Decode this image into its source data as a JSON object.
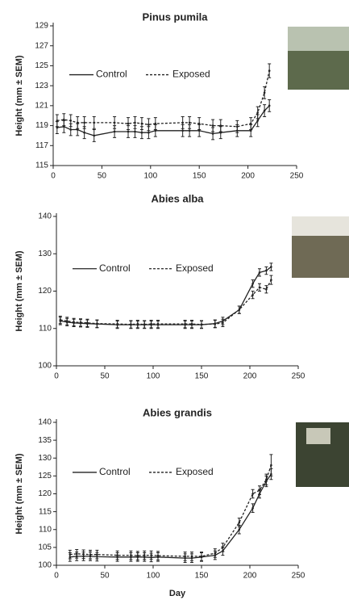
{
  "chart_data": [
    {
      "type": "line",
      "title": "Pinus pumila",
      "y_label": "Height (mm ± SEM)",
      "x": [
        4,
        11,
        18,
        25,
        32,
        42,
        63,
        77,
        84,
        91,
        98,
        105,
        133,
        140,
        150,
        164,
        172,
        189,
        203,
        210,
        217,
        222
      ],
      "series": [
        {
          "name": "Control",
          "color": "#222222",
          "style": "solid",
          "values": [
            118.8,
            118.9,
            118.6,
            118.6,
            118.3,
            118.0,
            118.4,
            118.4,
            118.4,
            118.3,
            118.3,
            118.5,
            118.5,
            118.5,
            118.5,
            118.2,
            118.3,
            118.5,
            118.5,
            119.5,
            120.5,
            121.0
          ],
          "errors": [
            0.6,
            0.6,
            0.6,
            0.6,
            0.6,
            0.6,
            0.6,
            0.6,
            0.6,
            0.6,
            0.6,
            0.6,
            0.6,
            0.6,
            0.6,
            0.6,
            0.6,
            0.6,
            0.6,
            0.6,
            0.6,
            0.6
          ]
        },
        {
          "name": "Exposed",
          "color": "#222222",
          "style": "dashed",
          "values": [
            119.5,
            119.6,
            119.5,
            119.3,
            119.3,
            119.3,
            119.3,
            119.2,
            119.3,
            119.2,
            119.1,
            119.2,
            119.3,
            119.3,
            119.2,
            119.0,
            119.0,
            118.9,
            119.2,
            120.3,
            122.3,
            124.5
          ],
          "errors": [
            0.6,
            0.6,
            0.6,
            0.6,
            0.6,
            0.6,
            0.6,
            0.6,
            0.6,
            0.6,
            0.6,
            0.6,
            0.6,
            0.6,
            0.6,
            0.6,
            0.6,
            0.6,
            0.6,
            0.6,
            0.6,
            0.7
          ]
        }
      ],
      "xlim": [
        0,
        250
      ],
      "xticks": [
        0,
        50,
        100,
        150,
        200,
        250
      ],
      "ylim": [
        115,
        129
      ],
      "yticks": [
        115,
        117,
        119,
        121,
        123,
        125,
        127,
        129
      ],
      "legend": "upper left"
    },
    {
      "type": "line",
      "title": "Abies alba",
      "y_label": "Height (mm ± SEM)",
      "x": [
        4,
        11,
        18,
        25,
        32,
        42,
        63,
        77,
        84,
        91,
        98,
        105,
        133,
        140,
        150,
        164,
        172,
        189,
        203,
        210,
        217,
        222
      ],
      "series": [
        {
          "name": "Control",
          "color": "#222222",
          "style": "solid",
          "values": [
            112.0,
            111.7,
            111.5,
            111.4,
            111.3,
            111.2,
            111.0,
            111.0,
            111.0,
            111.0,
            111.0,
            111.0,
            111.0,
            111.0,
            111.0,
            111.3,
            112.0,
            115.0,
            122.0,
            125.0,
            125.5,
            126.5
          ],
          "errors": [
            1.0,
            1.0,
            1.0,
            1.0,
            1.0,
            1.0,
            1.0,
            1.0,
            1.0,
            1.0,
            1.0,
            1.0,
            1.0,
            1.0,
            1.0,
            1.0,
            1.0,
            1.0,
            1.0,
            1.0,
            1.0,
            1.0
          ]
        },
        {
          "name": "Exposed",
          "color": "#222222",
          "style": "dashed",
          "values": [
            112.3,
            112.0,
            111.7,
            111.6,
            111.5,
            111.3,
            111.2,
            111.1,
            111.2,
            111.1,
            111.2,
            111.2,
            111.2,
            111.2,
            111.1,
            111.2,
            111.5,
            115.0,
            119.0,
            121.0,
            120.5,
            123.0
          ],
          "errors": [
            1.0,
            1.0,
            1.0,
            1.0,
            1.0,
            1.0,
            1.0,
            1.0,
            1.0,
            1.0,
            1.0,
            1.0,
            1.0,
            1.0,
            1.0,
            1.0,
            1.0,
            1.0,
            1.0,
            1.0,
            1.0,
            1.2
          ]
        }
      ],
      "xlim": [
        0,
        250
      ],
      "xticks": [
        0,
        50,
        100,
        150,
        200,
        250
      ],
      "ylim": [
        100,
        140
      ],
      "yticks": [
        100,
        110,
        120,
        130,
        140
      ],
      "legend": "upper left"
    },
    {
      "type": "line",
      "title": "Abies grandis",
      "y_label": "Height (mm ± SEM)",
      "x_label": "Day",
      "x": [
        14,
        21,
        28,
        35,
        42,
        63,
        77,
        84,
        91,
        98,
        105,
        133,
        140,
        150,
        164,
        172,
        189,
        203,
        210,
        217,
        222
      ],
      "series": [
        {
          "name": "Control",
          "color": "#222222",
          "style": "solid",
          "values": [
            102.3,
            102.5,
            102.5,
            102.5,
            102.4,
            102.3,
            102.3,
            102.3,
            102.3,
            102.2,
            102.3,
            102.0,
            102.0,
            102.3,
            102.8,
            104.0,
            110.0,
            116.0,
            120.0,
            123.5,
            125.5
          ],
          "errors": [
            1.2,
            1.2,
            1.2,
            1.2,
            1.2,
            1.2,
            1.2,
            1.2,
            1.2,
            1.2,
            1.2,
            1.2,
            1.2,
            1.2,
            1.2,
            1.2,
            1.2,
            1.2,
            1.2,
            1.5,
            1.5
          ]
        },
        {
          "name": "Exposed",
          "color": "#222222",
          "style": "dashed",
          "values": [
            103.0,
            103.2,
            103.1,
            103.0,
            103.0,
            102.8,
            102.8,
            102.7,
            102.8,
            102.8,
            102.7,
            102.5,
            102.5,
            102.5,
            103.4,
            105.0,
            112.0,
            120.0,
            121.0,
            124.0,
            128.0
          ],
          "errors": [
            1.2,
            1.2,
            1.2,
            1.2,
            1.2,
            1.2,
            1.2,
            1.2,
            1.2,
            1.2,
            1.2,
            1.2,
            1.2,
            1.2,
            1.2,
            1.2,
            1.2,
            1.2,
            1.2,
            1.5,
            3.0
          ]
        }
      ],
      "xlim": [
        0,
        250
      ],
      "xticks": [
        0,
        50,
        100,
        150,
        200,
        250
      ],
      "ylim": [
        100,
        140
      ],
      "yticks": [
        100,
        105,
        110,
        115,
        120,
        125,
        130,
        135,
        140
      ],
      "legend": "upper left"
    }
  ]
}
